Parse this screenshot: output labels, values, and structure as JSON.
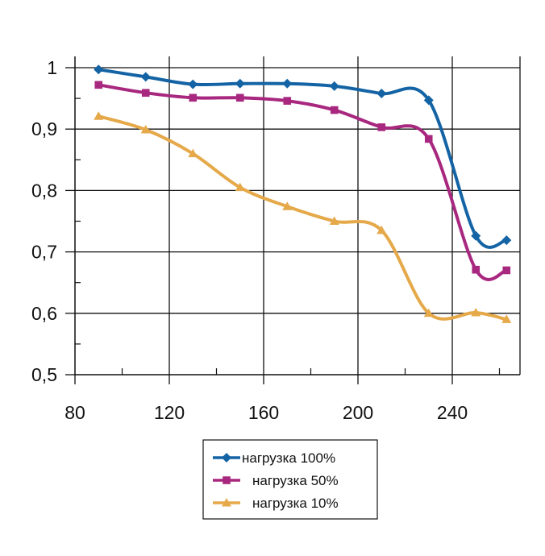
{
  "chart_data": {
    "type": "line",
    "title": "",
    "xlabel": "",
    "ylabel": "",
    "xlim": [
      80,
      265
    ],
    "ylim": [
      0.5,
      1.0
    ],
    "x_ticks": [
      80,
      120,
      160,
      200,
      240
    ],
    "x_tick_labels": [
      "80",
      "120",
      "160",
      "200",
      "240"
    ],
    "y_ticks": [
      0.5,
      0.6,
      0.7,
      0.8,
      0.9,
      1.0
    ],
    "y_tick_labels": [
      "0,5",
      "0,6",
      "0,7",
      "0,8",
      "0,9",
      "1"
    ],
    "grid": true,
    "legend_position": "bottom-center",
    "series": [
      {
        "name": "нагрузка 100%",
        "color": "#1464a5",
        "marker": "diamond",
        "x": [
          90,
          110,
          130,
          150,
          170,
          190,
          210,
          230,
          250,
          263
        ],
        "y": [
          0.997,
          0.985,
          0.973,
          0.974,
          0.974,
          0.97,
          0.958,
          0.947,
          0.726,
          0.719
        ]
      },
      {
        "name": "нагрузка 50%",
        "color": "#a8277f",
        "marker": "square",
        "x": [
          90,
          110,
          130,
          150,
          170,
          190,
          210,
          230,
          250,
          263
        ],
        "y": [
          0.972,
          0.959,
          0.951,
          0.951,
          0.946,
          0.931,
          0.903,
          0.884,
          0.671,
          0.67
        ]
      },
      {
        "name": "нагрузка 10%",
        "color": "#e5a94a",
        "marker": "triangle",
        "x": [
          90,
          110,
          130,
          150,
          170,
          190,
          210,
          230,
          250,
          263
        ],
        "y": [
          0.921,
          0.899,
          0.86,
          0.805,
          0.774,
          0.75,
          0.735,
          0.6,
          0.601,
          0.59
        ]
      }
    ]
  }
}
